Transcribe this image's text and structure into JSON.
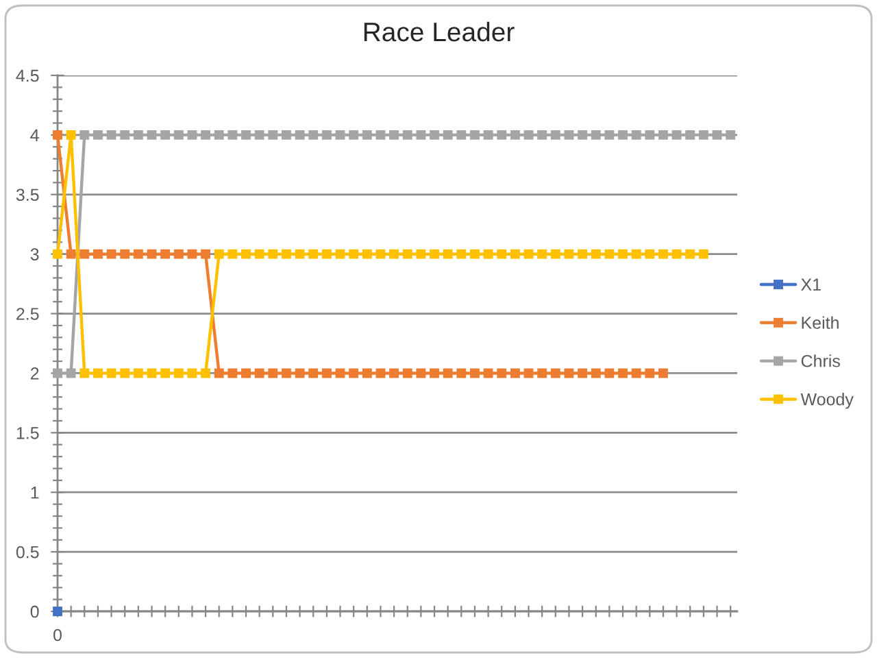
{
  "chart_data": {
    "type": "line",
    "title": "Race Leader",
    "categories": [
      "0",
      null,
      null,
      null,
      null,
      null,
      null,
      null,
      null,
      null,
      null,
      null,
      null,
      null,
      null,
      null,
      null,
      null,
      null,
      null,
      null,
      null,
      null,
      null,
      null,
      null,
      null,
      null,
      null,
      null,
      null,
      null,
      null,
      null,
      null,
      null,
      null,
      null,
      null,
      null,
      null,
      null,
      null,
      null,
      null,
      null,
      null,
      null,
      null,
      null,
      null
    ],
    "series": [
      {
        "name": "X1",
        "color": "#4472c4",
        "values": [
          0,
          null,
          null,
          null,
          null,
          null,
          null,
          null,
          null,
          null,
          null,
          null,
          null,
          null,
          null,
          null,
          null,
          null,
          null,
          null,
          null,
          null,
          null,
          null,
          null,
          null,
          null,
          null,
          null,
          null,
          null,
          null,
          null,
          null,
          null,
          null,
          null,
          null,
          null,
          null,
          null,
          null,
          null,
          null,
          null,
          null,
          null,
          null,
          null,
          null,
          null
        ]
      },
      {
        "name": "Keith",
        "color": "#ed7d31",
        "values": [
          4,
          3,
          3,
          3,
          3,
          3,
          3,
          3,
          3,
          3,
          3,
          3,
          2,
          2,
          2,
          2,
          2,
          2,
          2,
          2,
          2,
          2,
          2,
          2,
          2,
          2,
          2,
          2,
          2,
          2,
          2,
          2,
          2,
          2,
          2,
          2,
          2,
          2,
          2,
          2,
          2,
          2,
          2,
          2,
          2,
          2,
          null,
          null,
          null,
          null,
          null
        ]
      },
      {
        "name": "Chris",
        "color": "#a5a5a5",
        "values": [
          2,
          2,
          4,
          4,
          4,
          4,
          4,
          4,
          4,
          4,
          4,
          4,
          4,
          4,
          4,
          4,
          4,
          4,
          4,
          4,
          4,
          4,
          4,
          4,
          4,
          4,
          4,
          4,
          4,
          4,
          4,
          4,
          4,
          4,
          4,
          4,
          4,
          4,
          4,
          4,
          4,
          4,
          4,
          4,
          4,
          4,
          4,
          4,
          4,
          4,
          4
        ]
      },
      {
        "name": "Woody",
        "color": "#ffc000",
        "values": [
          3,
          4,
          2,
          2,
          2,
          2,
          2,
          2,
          2,
          2,
          2,
          2,
          3,
          3,
          3,
          3,
          3,
          3,
          3,
          3,
          3,
          3,
          3,
          3,
          3,
          3,
          3,
          3,
          3,
          3,
          3,
          3,
          3,
          3,
          3,
          3,
          3,
          3,
          3,
          3,
          3,
          3,
          3,
          3,
          3,
          3,
          3,
          3,
          3,
          null,
          null
        ]
      }
    ],
    "ylim": [
      0,
      4.5
    ],
    "yticks": [
      0,
      0.5,
      1,
      1.5,
      2,
      2.5,
      3,
      3.5,
      4,
      4.5
    ],
    "grid": "y",
    "legend": "right",
    "marker": "square",
    "line_style": "solid"
  }
}
